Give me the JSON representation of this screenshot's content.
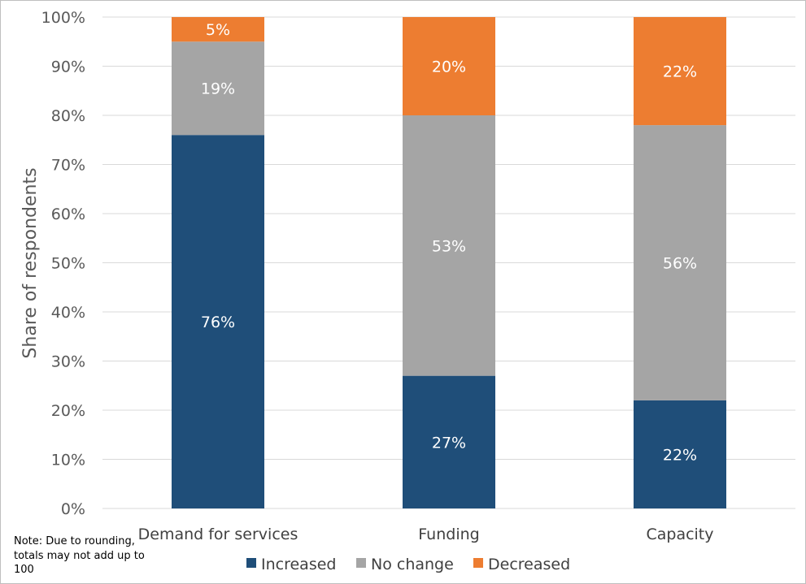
{
  "chart_data": {
    "type": "bar",
    "stacked": true,
    "categories": [
      "Demand for services",
      "Funding",
      "Capacity"
    ],
    "series": [
      {
        "name": "Increased",
        "color": "#1f4e79",
        "values": [
          76,
          27,
          22
        ],
        "labels": [
          "76%",
          "27%",
          "22%"
        ]
      },
      {
        "name": "No change",
        "color": "#a5a5a5",
        "values": [
          19,
          53,
          56
        ],
        "labels": [
          "19%",
          "53%",
          "56%"
        ]
      },
      {
        "name": "Decreased",
        "color": "#ed7d31",
        "values": [
          5,
          20,
          22
        ],
        "labels": [
          "5%",
          "20%",
          "22%"
        ]
      }
    ],
    "ylabel": "Share of respondents",
    "ylim": [
      0,
      100
    ],
    "yticks": [
      "0%",
      "10%",
      "20%",
      "30%",
      "40%",
      "50%",
      "60%",
      "70%",
      "80%",
      "90%",
      "100%"
    ],
    "grid": true,
    "legend": "bottom"
  },
  "note": "Note: Due to rounding, totals may not add up to 100"
}
